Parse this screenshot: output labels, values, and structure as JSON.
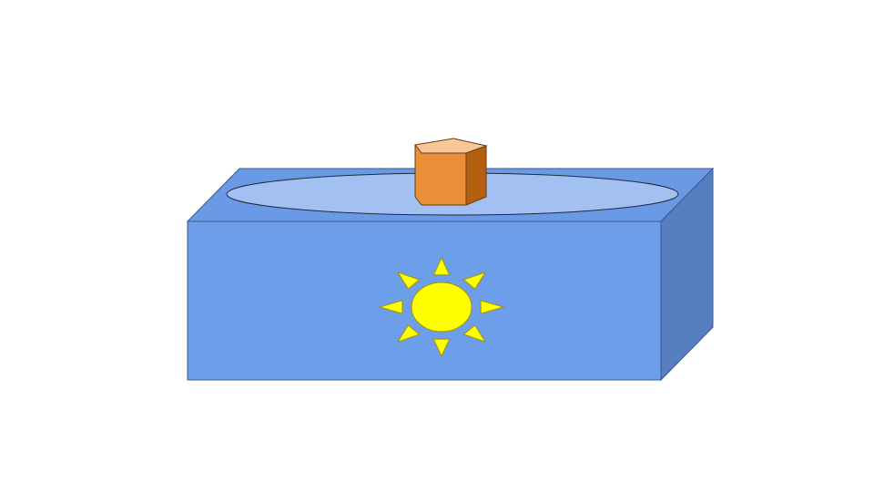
{
  "colors": {
    "background": "#ffffff",
    "box_front": "#6d9eea",
    "box_top": "#6a9ae6",
    "box_side": "#557fc0",
    "box_stroke": "#3a5a8a",
    "ellipse_fill": "#a3c0f3",
    "ellipse_stroke": "#1f2a3a",
    "sun": "#ffff00",
    "sun_stroke": "#a09000",
    "prism_front": "#e88f37",
    "prism_top": "#f7c699",
    "prism_side": "#b4600e",
    "prism_stroke": "#6b3b10"
  },
  "icons": {
    "box": "box-icon",
    "sun": "sun-icon",
    "prism": "pentagonal-prism-icon"
  }
}
